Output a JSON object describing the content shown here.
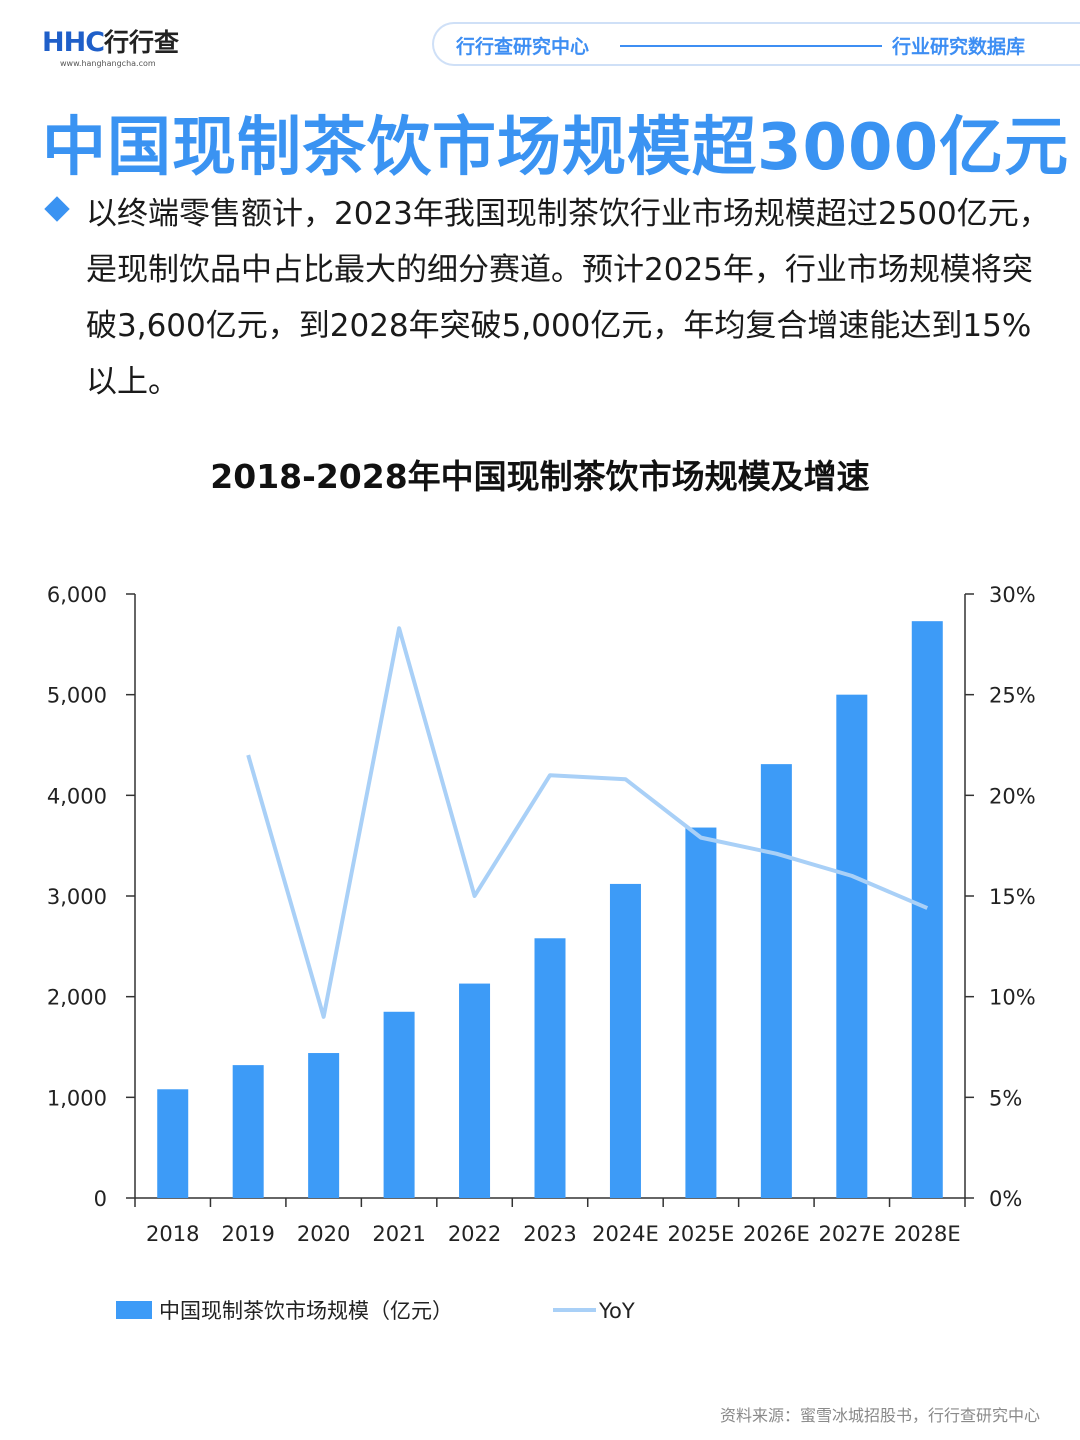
{
  "header": {
    "logo_text": "HHC",
    "logo_cn": "行行查",
    "logo_url": "www.hanghangcha.com",
    "topbar_left": "行行查研究中心",
    "topbar_right": "行业研究数据库"
  },
  "headline": "中国现制茶饮市场规模超3000亿元",
  "description": "以终端零售额计，2023年我国现制茶饮行业市场规模超过2500亿元，是现制饮品中占比最大的细分赛道。预计2025年，行业市场规模将突破3,600亿元，到2028年突破5,000亿元，年均复合增速能达到15%以上。",
  "chart_data": {
    "type": "bar",
    "title": "2018-2028年中国现制茶饮市场规模及增速",
    "categories": [
      "2018",
      "2019",
      "2020",
      "2021",
      "2022",
      "2023",
      "2024E",
      "2025E",
      "2026E",
      "2027E",
      "2028E"
    ],
    "series": [
      {
        "name": "中国现制茶饮市场规模（亿元）",
        "type": "bar",
        "axis": "left",
        "color": "#3d9bf7",
        "values": [
          1080,
          1320,
          1440,
          1850,
          2130,
          2580,
          3120,
          3680,
          4310,
          5000,
          5730
        ]
      },
      {
        "name": "YoY",
        "type": "line",
        "axis": "right",
        "color": "#a9d0f7",
        "values": [
          null,
          22.0,
          9.0,
          28.3,
          15.0,
          21.0,
          20.8,
          17.9,
          17.1,
          16.0,
          14.4
        ]
      }
    ],
    "y_left": {
      "min": 0,
      "max": 6000,
      "ticks": [
        "0",
        "1,000",
        "2,000",
        "3,000",
        "4,000",
        "5,000",
        "6,000"
      ]
    },
    "y_right": {
      "min": 0,
      "max": 30,
      "ticks": [
        "0%",
        "5%",
        "10%",
        "15%",
        "20%",
        "25%",
        "30%"
      ]
    },
    "grid": false,
    "legend_position": "bottom-left"
  },
  "source": "资料来源：蜜雪冰城招股书，行行查研究中心"
}
